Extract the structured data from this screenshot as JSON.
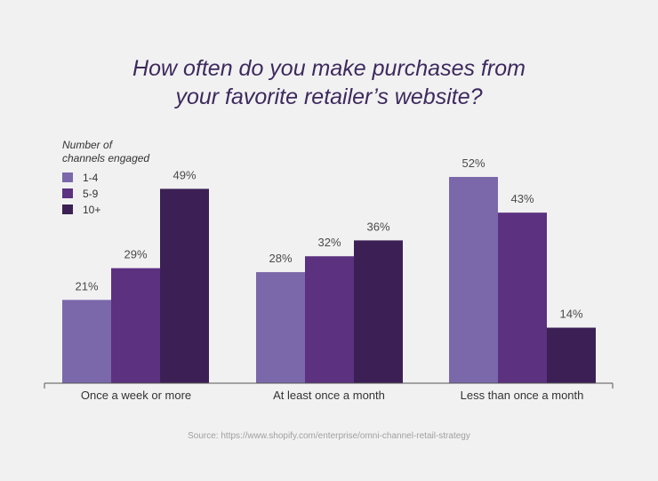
{
  "chart_data": {
    "type": "bar",
    "title_lines": [
      "How often do you make purchases from",
      "your favorite retailer’s website?"
    ],
    "legend_title_lines": [
      "Number of",
      "channels engaged"
    ],
    "categories": [
      "Once a week or more",
      "At least once a month",
      "Less than once a month"
    ],
    "series": [
      {
        "name": "1-4",
        "values": [
          21,
          28,
          52
        ],
        "color": "#7b68aa",
        "labels": [
          "21%",
          "28%",
          "52%"
        ]
      },
      {
        "name": "5-9",
        "values": [
          29,
          32,
          43
        ],
        "color": "#5b3180",
        "labels": [
          "29%",
          "32%",
          "43%"
        ]
      },
      {
        "name": "10+",
        "values": [
          49,
          36,
          14
        ],
        "color": "#3c2055",
        "labels": [
          "49%",
          "36%",
          "14%"
        ]
      }
    ],
    "ylim": [
      0,
      52
    ],
    "grid": false,
    "legend_position": "top-left",
    "source": "Source: https://www.shopify.com/enterprise/omni-channel-retail-strategy"
  }
}
